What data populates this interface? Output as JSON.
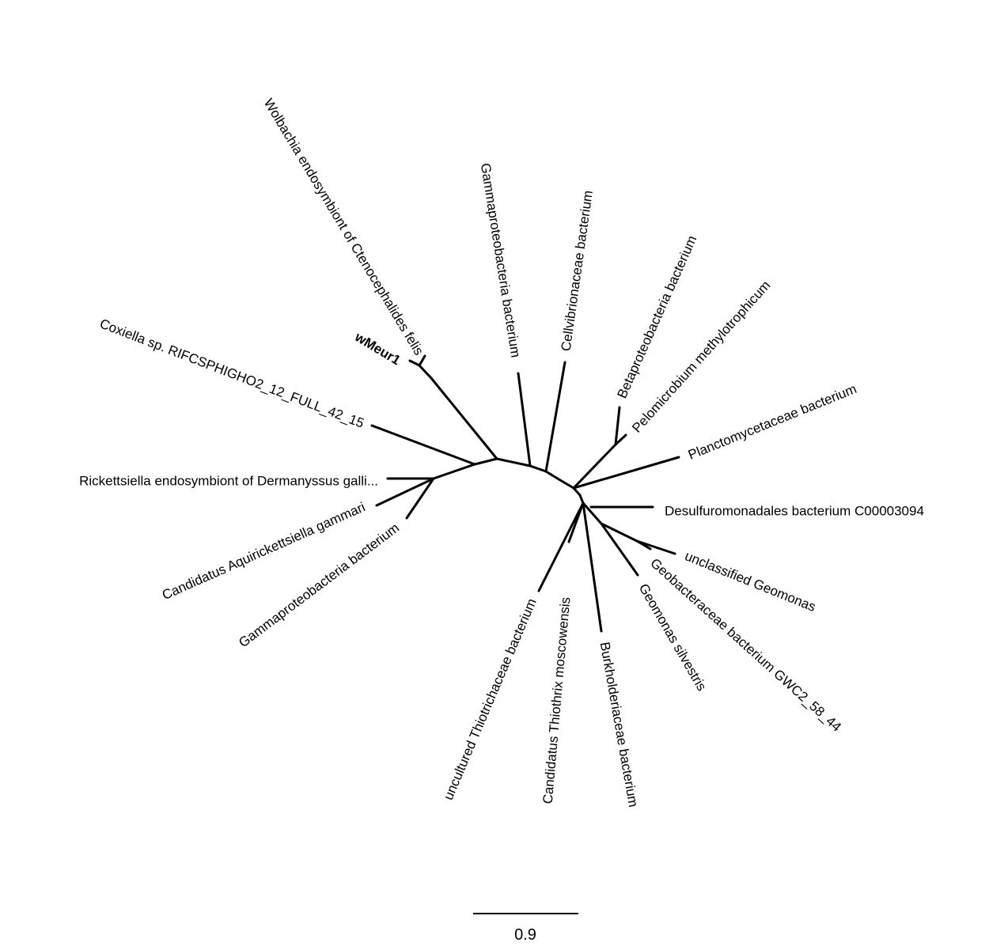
{
  "tree": {
    "highlight_color": "#1a8be0",
    "leaves": [
      {
        "id": "wolbachia",
        "label": "Wolbachia endosymbiont of Ctenocephalides felis",
        "highlight": false
      },
      {
        "id": "wmeur1",
        "label": "wMeur1",
        "highlight": true
      },
      {
        "id": "coxiella",
        "label": "Coxiella sp. RIFCSPHIGHO2_12_FULL_42_15",
        "highlight": false
      },
      {
        "id": "rickettsiella",
        "label": "Rickettsiella endosymbiont of Dermanyssus galli...",
        "highlight": false
      },
      {
        "id": "aquirickettsiella",
        "label": "Candidatus Aquirickettsiella gammari",
        "highlight": false
      },
      {
        "id": "gamma-left",
        "label": "Gammaproteobacteria bacterium",
        "highlight": false
      },
      {
        "id": "gamma-top",
        "label": "Gammaproteobacteria bacterium",
        "highlight": false
      },
      {
        "id": "cellvibrionaceae",
        "label": "Cellvibrionaceae bacterium",
        "highlight": false
      },
      {
        "id": "betaproteobacteria",
        "label": "Betaproteobacteria bacterium",
        "highlight": false
      },
      {
        "id": "pelomicrobium",
        "label": "Pelomicrobium methylotrophicum",
        "highlight": false
      },
      {
        "id": "planctomycetaceae",
        "label": "Planctomycetaceae bacterium",
        "highlight": false
      },
      {
        "id": "desulfuromonadales",
        "label": "Desulfuromonadales bacterium C00003094",
        "highlight": false
      },
      {
        "id": "unclassified-geomonas",
        "label": "unclassified Geomonas",
        "highlight": false
      },
      {
        "id": "geobacteraceae",
        "label": "Geobacteraceae bacterium GWC2_58_44",
        "highlight": false
      },
      {
        "id": "geomonas-silvestris",
        "label": "Geomonas silvestris",
        "highlight": false
      },
      {
        "id": "burkholderiaceae",
        "label": "Burkholderiaceae bacterium",
        "highlight": false
      },
      {
        "id": "thiothrix",
        "label": "Candidatus Thiothrix moscowensis",
        "highlight": false
      },
      {
        "id": "thiotrichaceae",
        "label": "uncultured Thiotrichaceae bacterium",
        "highlight": false
      }
    ]
  },
  "scale": {
    "label": "0.9"
  }
}
